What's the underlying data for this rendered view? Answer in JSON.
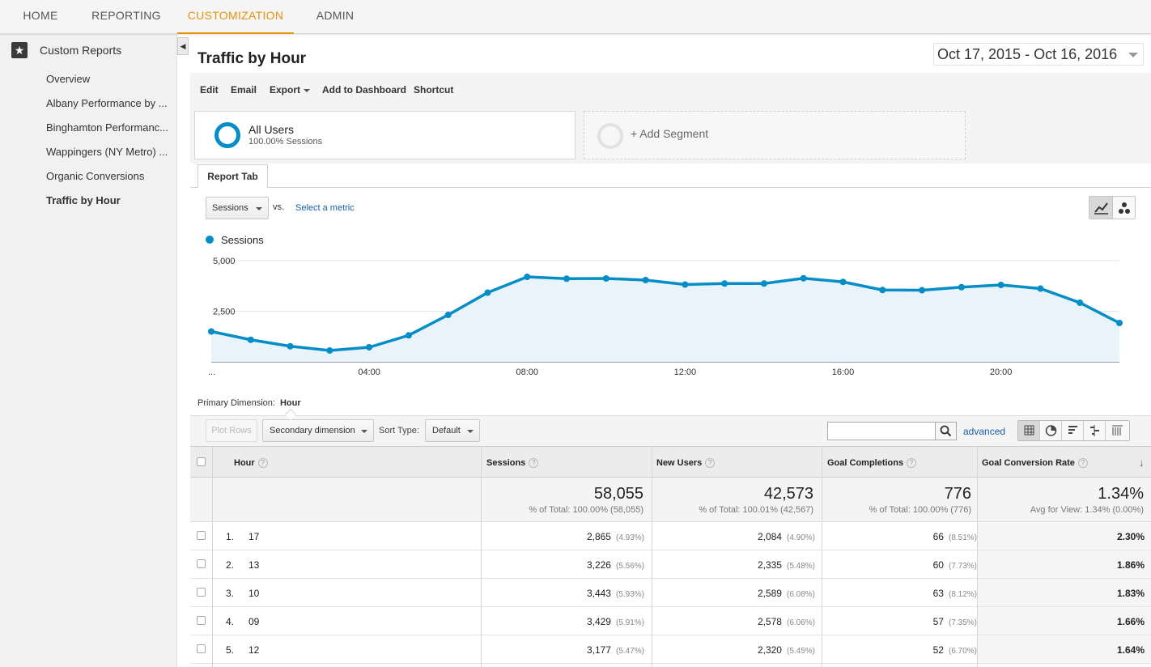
{
  "nav": {
    "tabs": [
      "HOME",
      "REPORTING",
      "CUSTOMIZATION",
      "ADMIN"
    ],
    "active": "CUSTOMIZATION",
    "accent": "#e8920c"
  },
  "sidebar": {
    "title": "Custom Reports",
    "items": [
      "Overview",
      "Albany Performance by ...",
      "Binghamton Performanc...",
      "Wappingers (NY Metro) ...",
      "Organic Conversions",
      "Traffic by Hour"
    ],
    "active": "Traffic by Hour"
  },
  "report": {
    "title": "Traffic by Hour",
    "date_range": "Oct 17, 2015 - Oct 16, 2016"
  },
  "toolbar": {
    "edit": "Edit",
    "email": "Email",
    "export": "Export",
    "add_dashboard": "Add to Dashboard",
    "shortcut": "Shortcut"
  },
  "segments": {
    "name": "All Users",
    "sub": "100.00% Sessions",
    "add": "+ Add Segment",
    "color": "#058dc7"
  },
  "report_tab": "Report Tab",
  "metric": {
    "selected": "Sessions",
    "vs": "vs.",
    "select_metric": "Select a metric"
  },
  "chart_data": {
    "type": "area",
    "series": [
      {
        "name": "Sessions",
        "values": [
          1500,
          1090,
          770,
          560,
          720,
          1310,
          2320,
          3420,
          4200,
          4110,
          4120,
          4040,
          3820,
          3870,
          3870,
          4130,
          3950,
          3550,
          3540,
          3690,
          3800,
          3620,
          2920,
          1920
        ],
        "color": "#058dc7"
      }
    ],
    "x": [
      0,
      1,
      2,
      3,
      4,
      5,
      6,
      7,
      8,
      9,
      10,
      11,
      12,
      13,
      14,
      15,
      16,
      17,
      18,
      19,
      20,
      21,
      22,
      23
    ],
    "x_tick_labels": [
      "...",
      "04:00",
      "08:00",
      "12:00",
      "16:00",
      "20:00"
    ],
    "y_tick_labels": [
      "5,000",
      "2,500"
    ],
    "ylim": [
      0,
      5000
    ],
    "grid": true
  },
  "primary_dimension": {
    "label": "Primary Dimension:",
    "value": "Hour"
  },
  "table_toolbar": {
    "plot_rows": "Plot Rows",
    "secondary": "Secondary dimension",
    "sort_label": "Sort Type:",
    "sort_value": "Default",
    "advanced": "advanced"
  },
  "table": {
    "headers": {
      "hour": "Hour",
      "sessions": "Sessions",
      "new_users": "New Users",
      "goal_completions": "Goal Completions",
      "goal_rate": "Goal Conversion Rate"
    },
    "totals": {
      "sessions": "58,055",
      "sessions_sub": "% of Total: 100.00% (58,055)",
      "new_users": "42,573",
      "new_users_sub": "% of Total: 100.01% (42,567)",
      "goals": "776",
      "goals_sub": "% of Total: 100.00% (776)",
      "rate": "1.34%",
      "rate_sub": "Avg for View: 1.34% (0.00%)"
    },
    "rows": [
      {
        "rank": "1.",
        "hour": "17",
        "sessions": "2,865",
        "sessions_pct": "(4.93%)",
        "new_users": "2,084",
        "new_users_pct": "(4.90%)",
        "goals": "66",
        "goals_pct": "(8.51%)",
        "rate": "2.30%"
      },
      {
        "rank": "2.",
        "hour": "13",
        "sessions": "3,226",
        "sessions_pct": "(5.56%)",
        "new_users": "2,335",
        "new_users_pct": "(5.48%)",
        "goals": "60",
        "goals_pct": "(7.73%)",
        "rate": "1.86%"
      },
      {
        "rank": "3.",
        "hour": "10",
        "sessions": "3,443",
        "sessions_pct": "(5.93%)",
        "new_users": "2,589",
        "new_users_pct": "(6.08%)",
        "goals": "63",
        "goals_pct": "(8.12%)",
        "rate": "1.83%"
      },
      {
        "rank": "4.",
        "hour": "09",
        "sessions": "3,429",
        "sessions_pct": "(5.91%)",
        "new_users": "2,578",
        "new_users_pct": "(6.06%)",
        "goals": "57",
        "goals_pct": "(7.35%)",
        "rate": "1.66%"
      },
      {
        "rank": "5.",
        "hour": "12",
        "sessions": "3,177",
        "sessions_pct": "(5.47%)",
        "new_users": "2,320",
        "new_users_pct": "(5.45%)",
        "goals": "52",
        "goals_pct": "(6.70%)",
        "rate": "1.64%"
      }
    ]
  }
}
